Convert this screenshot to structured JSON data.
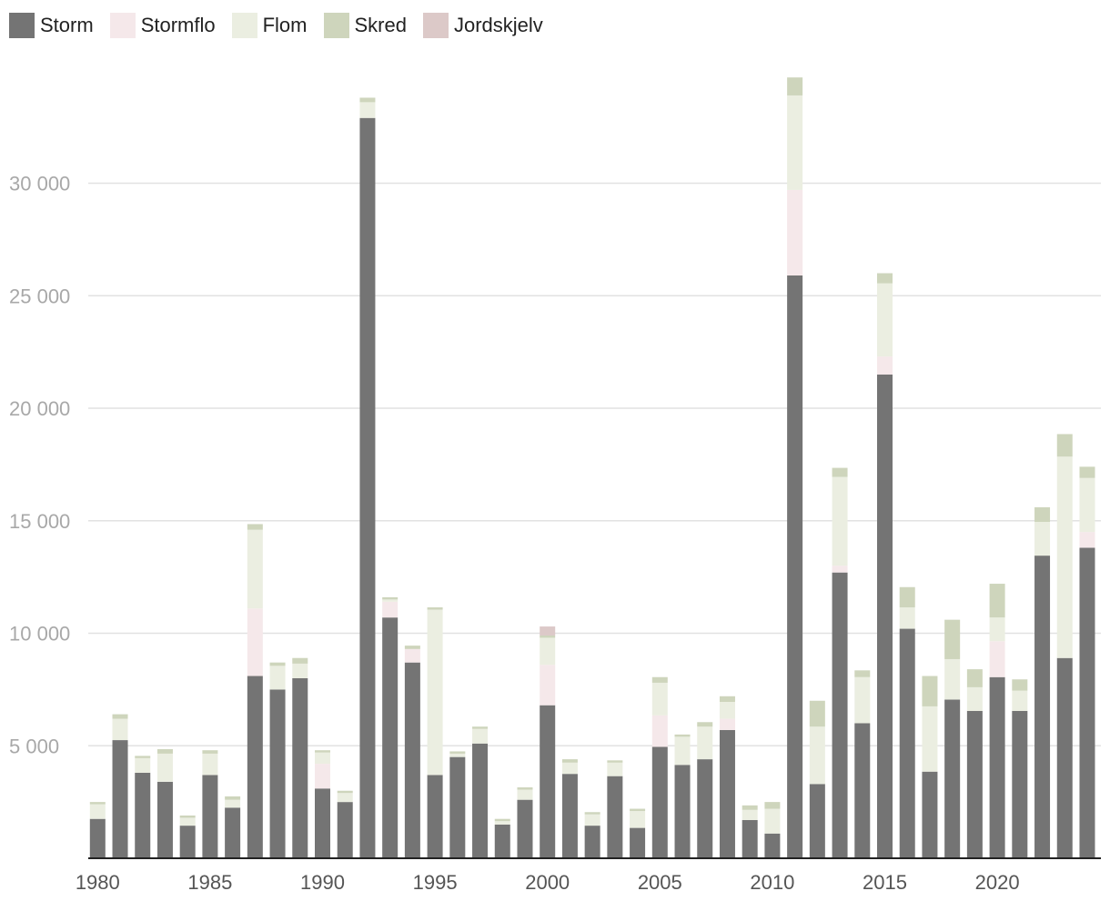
{
  "chart_data": {
    "type": "bar",
    "stacked": true,
    "title": "",
    "xlabel": "",
    "ylabel": "",
    "ylim": [
      0,
      35000
    ],
    "y_ticks": [
      5000,
      10000,
      15000,
      20000,
      25000,
      30000
    ],
    "y_tick_labels": [
      "5 000",
      "10 000",
      "15 000",
      "20 000",
      "25 000",
      "30 000"
    ],
    "x_tick_years": [
      1980,
      1985,
      1990,
      1995,
      2000,
      2005,
      2010,
      2015,
      2020
    ],
    "x_tick_labels": [
      "1980",
      "1985",
      "1990",
      "1995",
      "2000",
      "2005",
      "2010",
      "2015",
      "2020"
    ],
    "legend_position": "top-left",
    "grid": true,
    "categories": [
      1980,
      1981,
      1982,
      1983,
      1984,
      1985,
      1986,
      1987,
      1988,
      1989,
      1990,
      1991,
      1992,
      1993,
      1994,
      1995,
      1996,
      1997,
      1998,
      1999,
      2000,
      2001,
      2002,
      2003,
      2004,
      2005,
      2006,
      2007,
      2008,
      2009,
      2010,
      2011,
      2012,
      2013,
      2014,
      2015,
      2016,
      2017,
      2018,
      2019,
      2020,
      2021,
      2022,
      2023,
      2024
    ],
    "series": [
      {
        "name": "Storm",
        "color": "#747474",
        "values": [
          1750,
          5250,
          3800,
          3400,
          1450,
          3700,
          2250,
          8100,
          7500,
          8000,
          3100,
          2500,
          32900,
          10700,
          8700,
          3700,
          4500,
          5100,
          1500,
          2600,
          6800,
          3750,
          1450,
          3650,
          1350,
          4950,
          4150,
          4400,
          5700,
          1700,
          1100,
          25900,
          3300,
          12700,
          6000,
          21500,
          10200,
          3850,
          7050,
          6550,
          8050,
          6550,
          13450,
          8900,
          13800
        ]
      },
      {
        "name": "Stormflo",
        "color": "#f5e8ea",
        "values": [
          0,
          0,
          0,
          0,
          0,
          0,
          0,
          3000,
          0,
          0,
          1100,
          0,
          0,
          700,
          600,
          0,
          0,
          0,
          0,
          0,
          1800,
          0,
          0,
          0,
          0,
          1400,
          0,
          0,
          500,
          0,
          0,
          3800,
          0,
          300,
          0,
          800,
          0,
          0,
          0,
          0,
          1600,
          0,
          0,
          0,
          700
        ]
      },
      {
        "name": "Flom",
        "color": "#ebeee1",
        "values": [
          650,
          950,
          650,
          1250,
          350,
          950,
          350,
          3500,
          1050,
          650,
          500,
          400,
          700,
          100,
          0,
          7350,
          150,
          650,
          150,
          450,
          1200,
          500,
          500,
          600,
          750,
          1450,
          1250,
          1450,
          750,
          450,
          1100,
          4200,
          2550,
          3950,
          2050,
          3250,
          950,
          2900,
          1800,
          1050,
          1050,
          900,
          1500,
          8950,
          2400
        ]
      },
      {
        "name": "Skred",
        "color": "#ced5bc",
        "values": [
          100,
          200,
          100,
          200,
          100,
          150,
          150,
          250,
          150,
          250,
          100,
          100,
          200,
          100,
          150,
          100,
          100,
          100,
          100,
          100,
          100,
          150,
          100,
          100,
          100,
          250,
          100,
          200,
          250,
          200,
          300,
          800,
          1150,
          400,
          300,
          450,
          900,
          1350,
          1750,
          800,
          1500,
          500,
          650,
          1000,
          500
        ]
      },
      {
        "name": "Jordskjelv",
        "color": "#dcc9c8",
        "values": [
          0,
          0,
          0,
          0,
          0,
          0,
          0,
          0,
          0,
          0,
          0,
          0,
          0,
          0,
          0,
          0,
          0,
          0,
          0,
          0,
          400,
          0,
          0,
          0,
          0,
          0,
          0,
          0,
          0,
          0,
          0,
          0,
          0,
          0,
          0,
          0,
          0,
          0,
          0,
          0,
          0,
          0,
          0,
          0,
          0
        ]
      }
    ]
  }
}
